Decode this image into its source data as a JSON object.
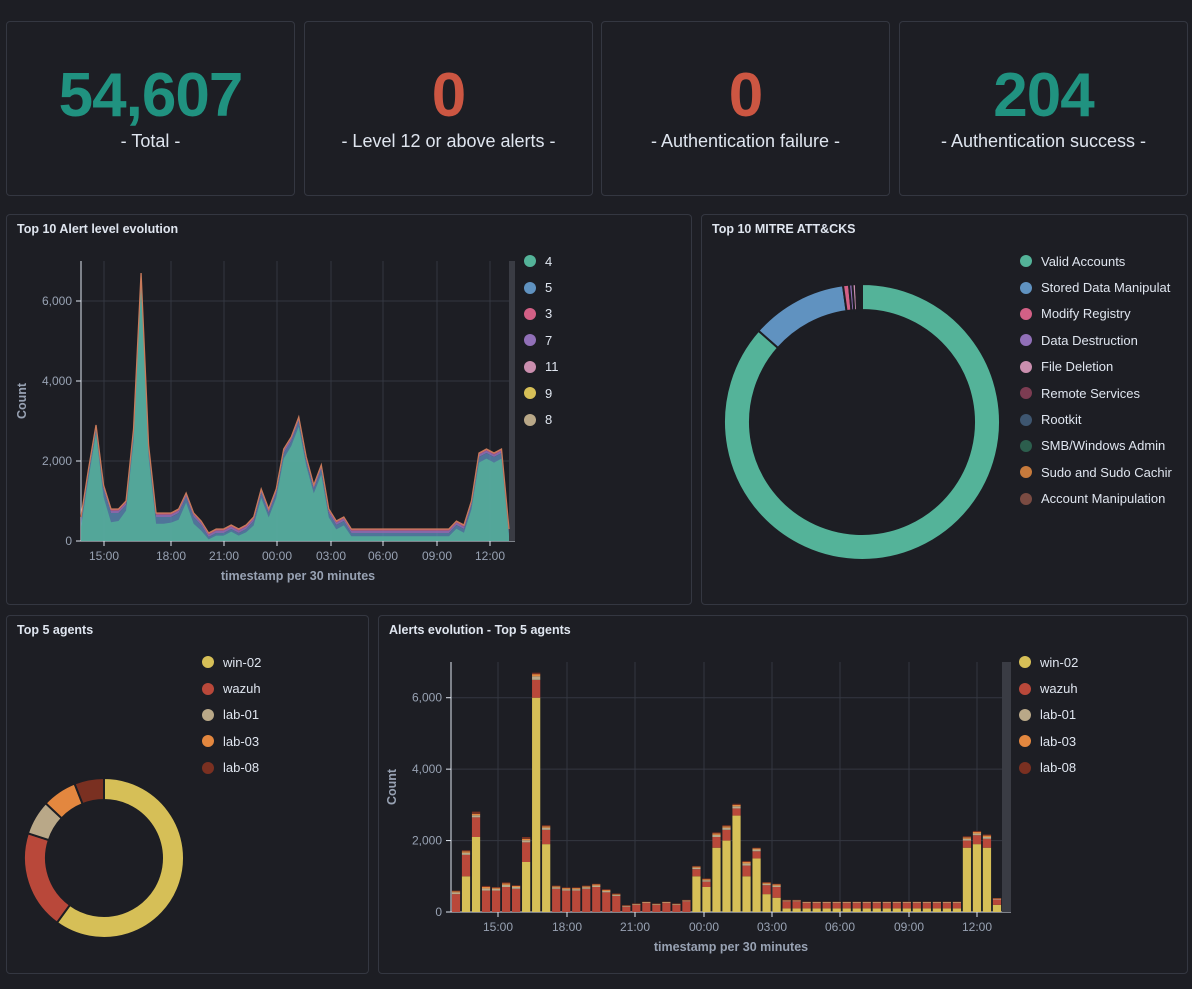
{
  "metrics": [
    {
      "value": "54,607",
      "label": "- Total -",
      "color": "#209280"
    },
    {
      "value": "0",
      "label": "- Level 12 or above alerts -",
      "color": "#cc5642"
    },
    {
      "value": "0",
      "label": "- Authentication failure -",
      "color": "#cc5642"
    },
    {
      "value": "204",
      "label": "- Authentication success -",
      "color": "#209280"
    }
  ],
  "panels": {
    "alert_level": "Top 10 Alert level evolution",
    "mitre": "Top 10 MITRE ATT&CKS",
    "agents": "Top 5 agents",
    "agents_evolution": "Alerts evolution - Top 5 agents"
  },
  "chart_data": [
    {
      "type": "area",
      "title": "Top 10 Alert level evolution",
      "xlabel": "timestamp per 30 minutes",
      "ylabel": "Count",
      "ylim": [
        0,
        7000
      ],
      "yticks": [
        "0",
        "2,000",
        "4,000",
        "6,000"
      ],
      "xticks": [
        "15:00",
        "18:00",
        "21:00",
        "00:00",
        "03:00",
        "06:00",
        "09:00",
        "12:00"
      ],
      "legend_position": "right",
      "legend": [
        {
          "name": "4",
          "color": "#54b399"
        },
        {
          "name": "5",
          "color": "#6092c0"
        },
        {
          "name": "3",
          "color": "#d36086"
        },
        {
          "name": "7",
          "color": "#9170b8"
        },
        {
          "name": "11",
          "color": "#ca8eae"
        },
        {
          "name": "9",
          "color": "#d6bf57"
        },
        {
          "name": "8",
          "color": "#b9a888"
        }
      ],
      "total": [
        600,
        1800,
        2900,
        1400,
        800,
        800,
        1000,
        2800,
        6700,
        2400,
        700,
        700,
        700,
        800,
        1200,
        700,
        500,
        200,
        300,
        300,
        400,
        300,
        400,
        600,
        1300,
        800,
        1300,
        2300,
        2600,
        3100,
        2100,
        1400,
        1900,
        800,
        500,
        600,
        300,
        300,
        300,
        300,
        300,
        300,
        300,
        300,
        300,
        300,
        300,
        300,
        300,
        300,
        500,
        400,
        1000,
        2200,
        2300,
        2200,
        2300,
        300
      ],
      "level5": [
        400,
        400,
        300,
        600,
        700,
        600,
        400,
        700,
        500,
        600,
        500,
        500,
        400,
        500,
        400,
        500,
        400,
        150,
        150,
        150,
        150,
        150,
        200,
        300,
        350,
        300,
        350,
        400,
        350,
        400,
        350,
        300,
        400,
        300,
        300,
        300,
        200,
        200,
        200,
        200,
        200,
        200,
        200,
        200,
        200,
        200,
        200,
        200,
        200,
        200,
        250,
        250,
        300,
        400,
        400,
        400,
        400,
        200
      ]
    },
    {
      "type": "pie",
      "title": "Top 10 MITRE ATT&CKS",
      "legend_position": "right",
      "categories": [
        "Valid Accounts",
        "Stored Data Manipulat",
        "Modify Registry",
        "Data Destruction",
        "File Deletion",
        "Remote Services",
        "Rootkit",
        "SMB/Windows Admin",
        "Sudo and Sudo Cachir",
        "Account Manipulation"
      ],
      "values": [
        86.5,
        11.3,
        0.7,
        0.4,
        0.4,
        0.2,
        0.2,
        0.1,
        0.1,
        0.1
      ],
      "colors": [
        "#54b399",
        "#6092c0",
        "#d36086",
        "#9170b8",
        "#ca8eae",
        "#7c3c52",
        "#3e5670",
        "#2c5e4d",
        "#c67a3c",
        "#7a4b42"
      ]
    },
    {
      "type": "pie",
      "title": "Top 5 agents",
      "legend_position": "right",
      "categories": [
        "win-02",
        "wazuh",
        "lab-01",
        "lab-03",
        "lab-08"
      ],
      "values": [
        60,
        20,
        7,
        7,
        6
      ],
      "colors": [
        "#d6bf57",
        "#b9483a",
        "#b9a888",
        "#e3873f",
        "#7a3021"
      ]
    },
    {
      "type": "bar",
      "title": "Alerts evolution - Top 5 agents",
      "xlabel": "timestamp per 30 minutes",
      "ylabel": "Count",
      "ylim": [
        0,
        7000
      ],
      "yticks": [
        "0",
        "2,000",
        "4,000",
        "6,000"
      ],
      "xticks": [
        "15:00",
        "18:00",
        "21:00",
        "00:00",
        "03:00",
        "06:00",
        "09:00",
        "12:00"
      ],
      "legend_position": "right",
      "series": [
        {
          "name": "win-02",
          "color": "#d6bf57",
          "values": [
            0,
            1000,
            2100,
            0,
            0,
            0,
            0,
            1400,
            6000,
            1900,
            0,
            0,
            0,
            0,
            0,
            0,
            0,
            0,
            0,
            0,
            0,
            0,
            0,
            0,
            1000,
            700,
            1800,
            2000,
            2700,
            1000,
            1500,
            500,
            400,
            100,
            100,
            100,
            100,
            100,
            100,
            100,
            100,
            100,
            100,
            100,
            100,
            100,
            100,
            100,
            100,
            100,
            100,
            1800,
            1900,
            1800,
            200
          ]
        },
        {
          "name": "wazuh",
          "color": "#b9483a",
          "values": [
            500,
            600,
            550,
            600,
            600,
            700,
            650,
            550,
            500,
            400,
            650,
            600,
            600,
            650,
            700,
            550,
            450,
            150,
            200,
            250,
            200,
            250,
            200,
            300,
            200,
            150,
            300,
            300,
            200,
            300,
            200,
            250,
            300,
            200,
            200,
            150,
            150,
            150,
            150,
            150,
            150,
            150,
            150,
            150,
            150,
            150,
            150,
            150,
            150,
            150,
            150,
            200,
            250,
            250,
            150
          ]
        },
        {
          "name": "lab-01",
          "color": "#b9a888",
          "values": [
            50,
            60,
            60,
            60,
            50,
            60,
            50,
            60,
            100,
            60,
            40,
            40,
            40,
            40,
            40,
            40,
            30,
            20,
            20,
            20,
            20,
            20,
            20,
            20,
            40,
            40,
            60,
            60,
            60,
            60,
            50,
            40,
            40,
            20,
            20,
            20,
            20,
            20,
            20,
            20,
            20,
            20,
            20,
            20,
            20,
            20,
            20,
            20,
            20,
            20,
            20,
            50,
            50,
            50,
            20
          ]
        },
        {
          "name": "lab-03",
          "color": "#e3873f",
          "values": [
            30,
            40,
            40,
            40,
            30,
            40,
            30,
            40,
            60,
            40,
            30,
            30,
            30,
            30,
            30,
            30,
            20,
            10,
            10,
            10,
            10,
            10,
            10,
            10,
            30,
            30,
            40,
            40,
            40,
            40,
            30,
            30,
            30,
            10,
            10,
            10,
            10,
            10,
            10,
            10,
            10,
            10,
            10,
            10,
            10,
            10,
            10,
            10,
            10,
            10,
            10,
            40,
            40,
            40,
            10
          ]
        },
        {
          "name": "lab-08",
          "color": "#7a3021",
          "values": [
            20,
            30,
            60,
            30,
            20,
            30,
            20,
            50,
            40,
            30,
            20,
            20,
            20,
            20,
            20,
            20,
            20,
            10,
            10,
            10,
            10,
            10,
            10,
            10,
            20,
            20,
            30,
            30,
            30,
            30,
            20,
            20,
            20,
            10,
            10,
            10,
            10,
            10,
            10,
            10,
            10,
            10,
            10,
            10,
            10,
            10,
            10,
            10,
            10,
            10,
            10,
            30,
            30,
            30,
            10
          ]
        }
      ]
    }
  ]
}
